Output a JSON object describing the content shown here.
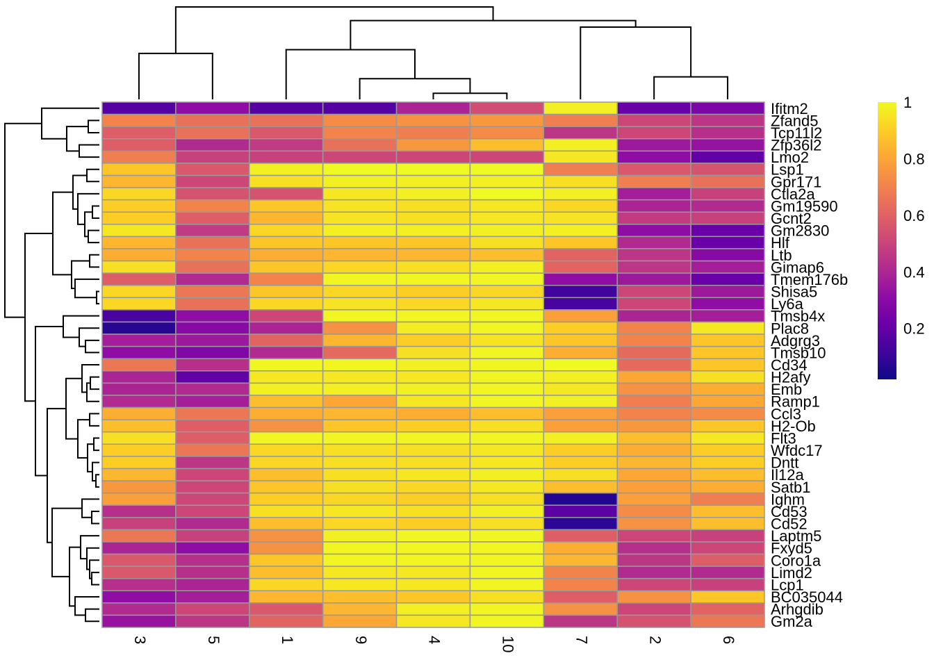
{
  "chart_data": {
    "type": "heatmap",
    "title": "",
    "xlabel": "",
    "ylabel": "",
    "colormap": "plasma",
    "color_range": [
      0,
      1
    ],
    "cell_border_color": "#999999",
    "legend": {
      "placement": "right",
      "ticks": [
        "1",
        "0.8",
        "0.6",
        "0.4",
        "0.2"
      ],
      "tick_values": [
        1,
        0.8,
        0.6,
        0.4,
        0.2
      ],
      "range": [
        0.02,
        1
      ]
    },
    "columns": [
      "3",
      "5",
      "1",
      "9",
      "4",
      "10",
      "7",
      "2",
      "6"
    ],
    "rows": [
      "Ifitm2",
      "Zfand5",
      "Tcp11l2",
      "Zfp36l2",
      "Lmo2",
      "Lsp1",
      "Gpr171",
      "Ctla2a",
      "Gm19590",
      "Gcnt2",
      "Gm2830",
      "Hlf",
      "Ltb",
      "Gimap6",
      "Tmem176b",
      "Shisa5",
      "Ly6a",
      "Tmsb4x",
      "Plac8",
      "Adgrg3",
      "Tmsb10",
      "Cd34",
      "H2afy",
      "Emb",
      "Ramp1",
      "Ccl3",
      "H2-Ob",
      "Flt3",
      "Wfdc17",
      "Dntt",
      "Il12a",
      "Satb1",
      "Ighm",
      "Cd53",
      "Cd52",
      "Laptm5",
      "Fxyd5",
      "Coro1a",
      "Limd2",
      "Lcp1",
      "BC035044",
      "Arhgdib",
      "Gm2a"
    ],
    "values": [
      [
        0.15,
        0.3,
        0.15,
        0.15,
        0.38,
        0.52,
        0.98,
        0.2,
        0.25
      ],
      [
        0.7,
        0.64,
        0.64,
        0.72,
        0.74,
        0.76,
        0.68,
        0.5,
        0.44
      ],
      [
        0.58,
        0.64,
        0.56,
        0.7,
        0.68,
        0.72,
        0.44,
        0.5,
        0.42
      ],
      [
        0.58,
        0.4,
        0.46,
        0.64,
        0.76,
        0.86,
        0.98,
        0.34,
        0.32
      ],
      [
        0.68,
        0.48,
        0.48,
        0.5,
        0.5,
        0.5,
        0.96,
        0.3,
        0.18
      ],
      [
        0.88,
        0.56,
        0.98,
        1.0,
        1.0,
        1.0,
        0.68,
        0.56,
        0.54
      ],
      [
        0.84,
        0.5,
        0.94,
        0.98,
        0.98,
        0.98,
        0.94,
        0.68,
        0.64
      ],
      [
        0.92,
        0.54,
        0.54,
        0.96,
        0.98,
        1.0,
        0.98,
        0.36,
        0.48
      ],
      [
        0.9,
        0.7,
        0.88,
        0.95,
        0.94,
        0.96,
        0.92,
        0.38,
        0.4
      ],
      [
        0.9,
        0.58,
        0.84,
        0.95,
        0.94,
        0.96,
        0.95,
        0.46,
        0.48
      ],
      [
        0.96,
        0.46,
        0.92,
        0.98,
        0.98,
        0.98,
        0.98,
        0.3,
        0.2
      ],
      [
        0.84,
        0.64,
        0.88,
        0.88,
        0.88,
        0.94,
        0.88,
        0.4,
        0.2
      ],
      [
        0.82,
        0.7,
        0.82,
        0.84,
        0.84,
        0.86,
        0.6,
        0.44,
        0.28
      ],
      [
        0.94,
        0.64,
        0.88,
        0.92,
        0.94,
        0.98,
        0.6,
        0.44,
        0.36
      ],
      [
        0.58,
        0.4,
        0.7,
        0.99,
        0.99,
        0.99,
        0.3,
        0.34,
        0.2
      ],
      [
        0.92,
        0.66,
        0.88,
        0.92,
        0.9,
        0.92,
        0.1,
        0.5,
        0.34
      ],
      [
        0.92,
        0.64,
        0.92,
        0.95,
        0.92,
        0.96,
        0.12,
        0.5,
        0.3
      ],
      [
        0.12,
        0.3,
        0.5,
        0.99,
        0.99,
        0.99,
        0.78,
        0.38,
        0.36
      ],
      [
        0.05,
        0.28,
        0.38,
        0.74,
        0.97,
        0.99,
        0.9,
        0.7,
        0.96
      ],
      [
        0.36,
        0.34,
        0.6,
        0.84,
        0.9,
        0.95,
        0.88,
        0.7,
        0.88
      ],
      [
        0.3,
        0.26,
        0.4,
        0.62,
        0.94,
        0.99,
        0.82,
        0.62,
        0.88
      ],
      [
        0.66,
        0.42,
        0.99,
        0.99,
        0.98,
        0.99,
        1.0,
        0.62,
        0.88
      ],
      [
        0.38,
        0.18,
        0.96,
        0.96,
        0.96,
        0.99,
        0.98,
        0.8,
        0.94
      ],
      [
        0.38,
        0.4,
        0.98,
        0.98,
        0.98,
        0.99,
        0.96,
        0.74,
        0.82
      ],
      [
        0.4,
        0.36,
        0.86,
        0.8,
        0.96,
        0.99,
        0.98,
        0.68,
        0.8
      ],
      [
        0.82,
        0.66,
        0.82,
        0.84,
        0.82,
        0.86,
        0.78,
        0.7,
        0.72
      ],
      [
        0.86,
        0.58,
        0.74,
        0.88,
        0.9,
        0.94,
        0.78,
        0.76,
        0.88
      ],
      [
        0.94,
        0.58,
        0.99,
        0.99,
        0.99,
        0.99,
        0.98,
        0.86,
        0.96
      ],
      [
        0.9,
        0.66,
        0.92,
        0.94,
        0.94,
        0.96,
        0.9,
        0.82,
        0.9
      ],
      [
        0.9,
        0.44,
        0.92,
        0.94,
        0.94,
        0.96,
        0.9,
        0.84,
        0.9
      ],
      [
        0.84,
        0.5,
        0.86,
        0.94,
        0.96,
        0.98,
        0.94,
        0.8,
        0.86
      ],
      [
        0.76,
        0.5,
        0.88,
        0.94,
        0.92,
        0.96,
        0.86,
        0.78,
        0.82
      ],
      [
        0.78,
        0.5,
        0.9,
        0.92,
        0.9,
        0.94,
        0.04,
        0.78,
        0.68
      ],
      [
        0.42,
        0.5,
        0.94,
        0.96,
        0.94,
        0.98,
        0.16,
        0.72,
        0.86
      ],
      [
        0.48,
        0.4,
        0.86,
        0.92,
        0.9,
        0.94,
        0.06,
        0.74,
        0.86
      ],
      [
        0.66,
        0.48,
        0.74,
        0.98,
        0.99,
        0.99,
        0.58,
        0.5,
        0.48
      ],
      [
        0.38,
        0.3,
        0.74,
        0.99,
        0.99,
        0.99,
        0.82,
        0.42,
        0.5
      ],
      [
        0.56,
        0.42,
        0.88,
        0.99,
        0.99,
        0.99,
        0.84,
        0.44,
        0.58
      ],
      [
        0.56,
        0.42,
        0.86,
        0.96,
        0.96,
        0.99,
        0.7,
        0.4,
        0.4
      ],
      [
        0.42,
        0.38,
        0.92,
        0.96,
        0.96,
        0.99,
        0.7,
        0.5,
        0.48
      ],
      [
        0.3,
        0.36,
        0.84,
        0.86,
        0.88,
        0.94,
        0.58,
        0.74,
        0.88
      ],
      [
        0.4,
        0.5,
        0.56,
        0.84,
        0.98,
        0.99,
        0.74,
        0.5,
        0.6
      ],
      [
        0.32,
        0.44,
        0.6,
        0.8,
        0.96,
        0.99,
        0.44,
        0.54,
        0.66
      ]
    ],
    "col_dendrogram": {
      "merges": [
        {
          "a": "4",
          "b": "10",
          "height": 0.08
        },
        {
          "a": "9",
          "b": "4+10",
          "height": 0.25
        },
        {
          "a": "2",
          "b": "6",
          "height": 0.27
        },
        {
          "a": "3",
          "b": "5",
          "height": 0.52
        },
        {
          "a": "1",
          "b": "9+4+10",
          "height": 0.55
        },
        {
          "a": "7",
          "b": "2+6",
          "height": 0.82
        },
        {
          "a": "1+9+4+10",
          "b": "7+2+6",
          "height": 0.88
        },
        {
          "a": "3+5",
          "b": "rest",
          "height": 1.0
        }
      ]
    },
    "row_dendrogram": {
      "groups": [
        [
          "Ifitm2",
          "Zfand5",
          "Tcp11l2",
          "Zfp36l2",
          "Lmo2"
        ],
        [
          "Lsp1",
          "Gpr171",
          "Ctla2a",
          "Gm19590",
          "Gcnt2",
          "Gm2830",
          "Hlf",
          "Ltb",
          "Gimap6",
          "Tmem176b",
          "Shisa5",
          "Ly6a"
        ],
        [
          "Tmsb4x",
          "Plac8",
          "Adgrg3",
          "Tmsb10"
        ],
        [
          "Cd34",
          "H2afy",
          "Emb",
          "Ramp1",
          "Ccl3",
          "H2-Ob",
          "Flt3",
          "Wfdc17",
          "Dntt",
          "Il12a",
          "Satb1"
        ],
        [
          "Ighm",
          "Cd53",
          "Cd52"
        ],
        [
          "Laptm5",
          "Fxyd5",
          "Coro1a",
          "Limd2",
          "Lcp1",
          "BC035044",
          "Arhgdib",
          "Gm2a"
        ]
      ]
    }
  }
}
